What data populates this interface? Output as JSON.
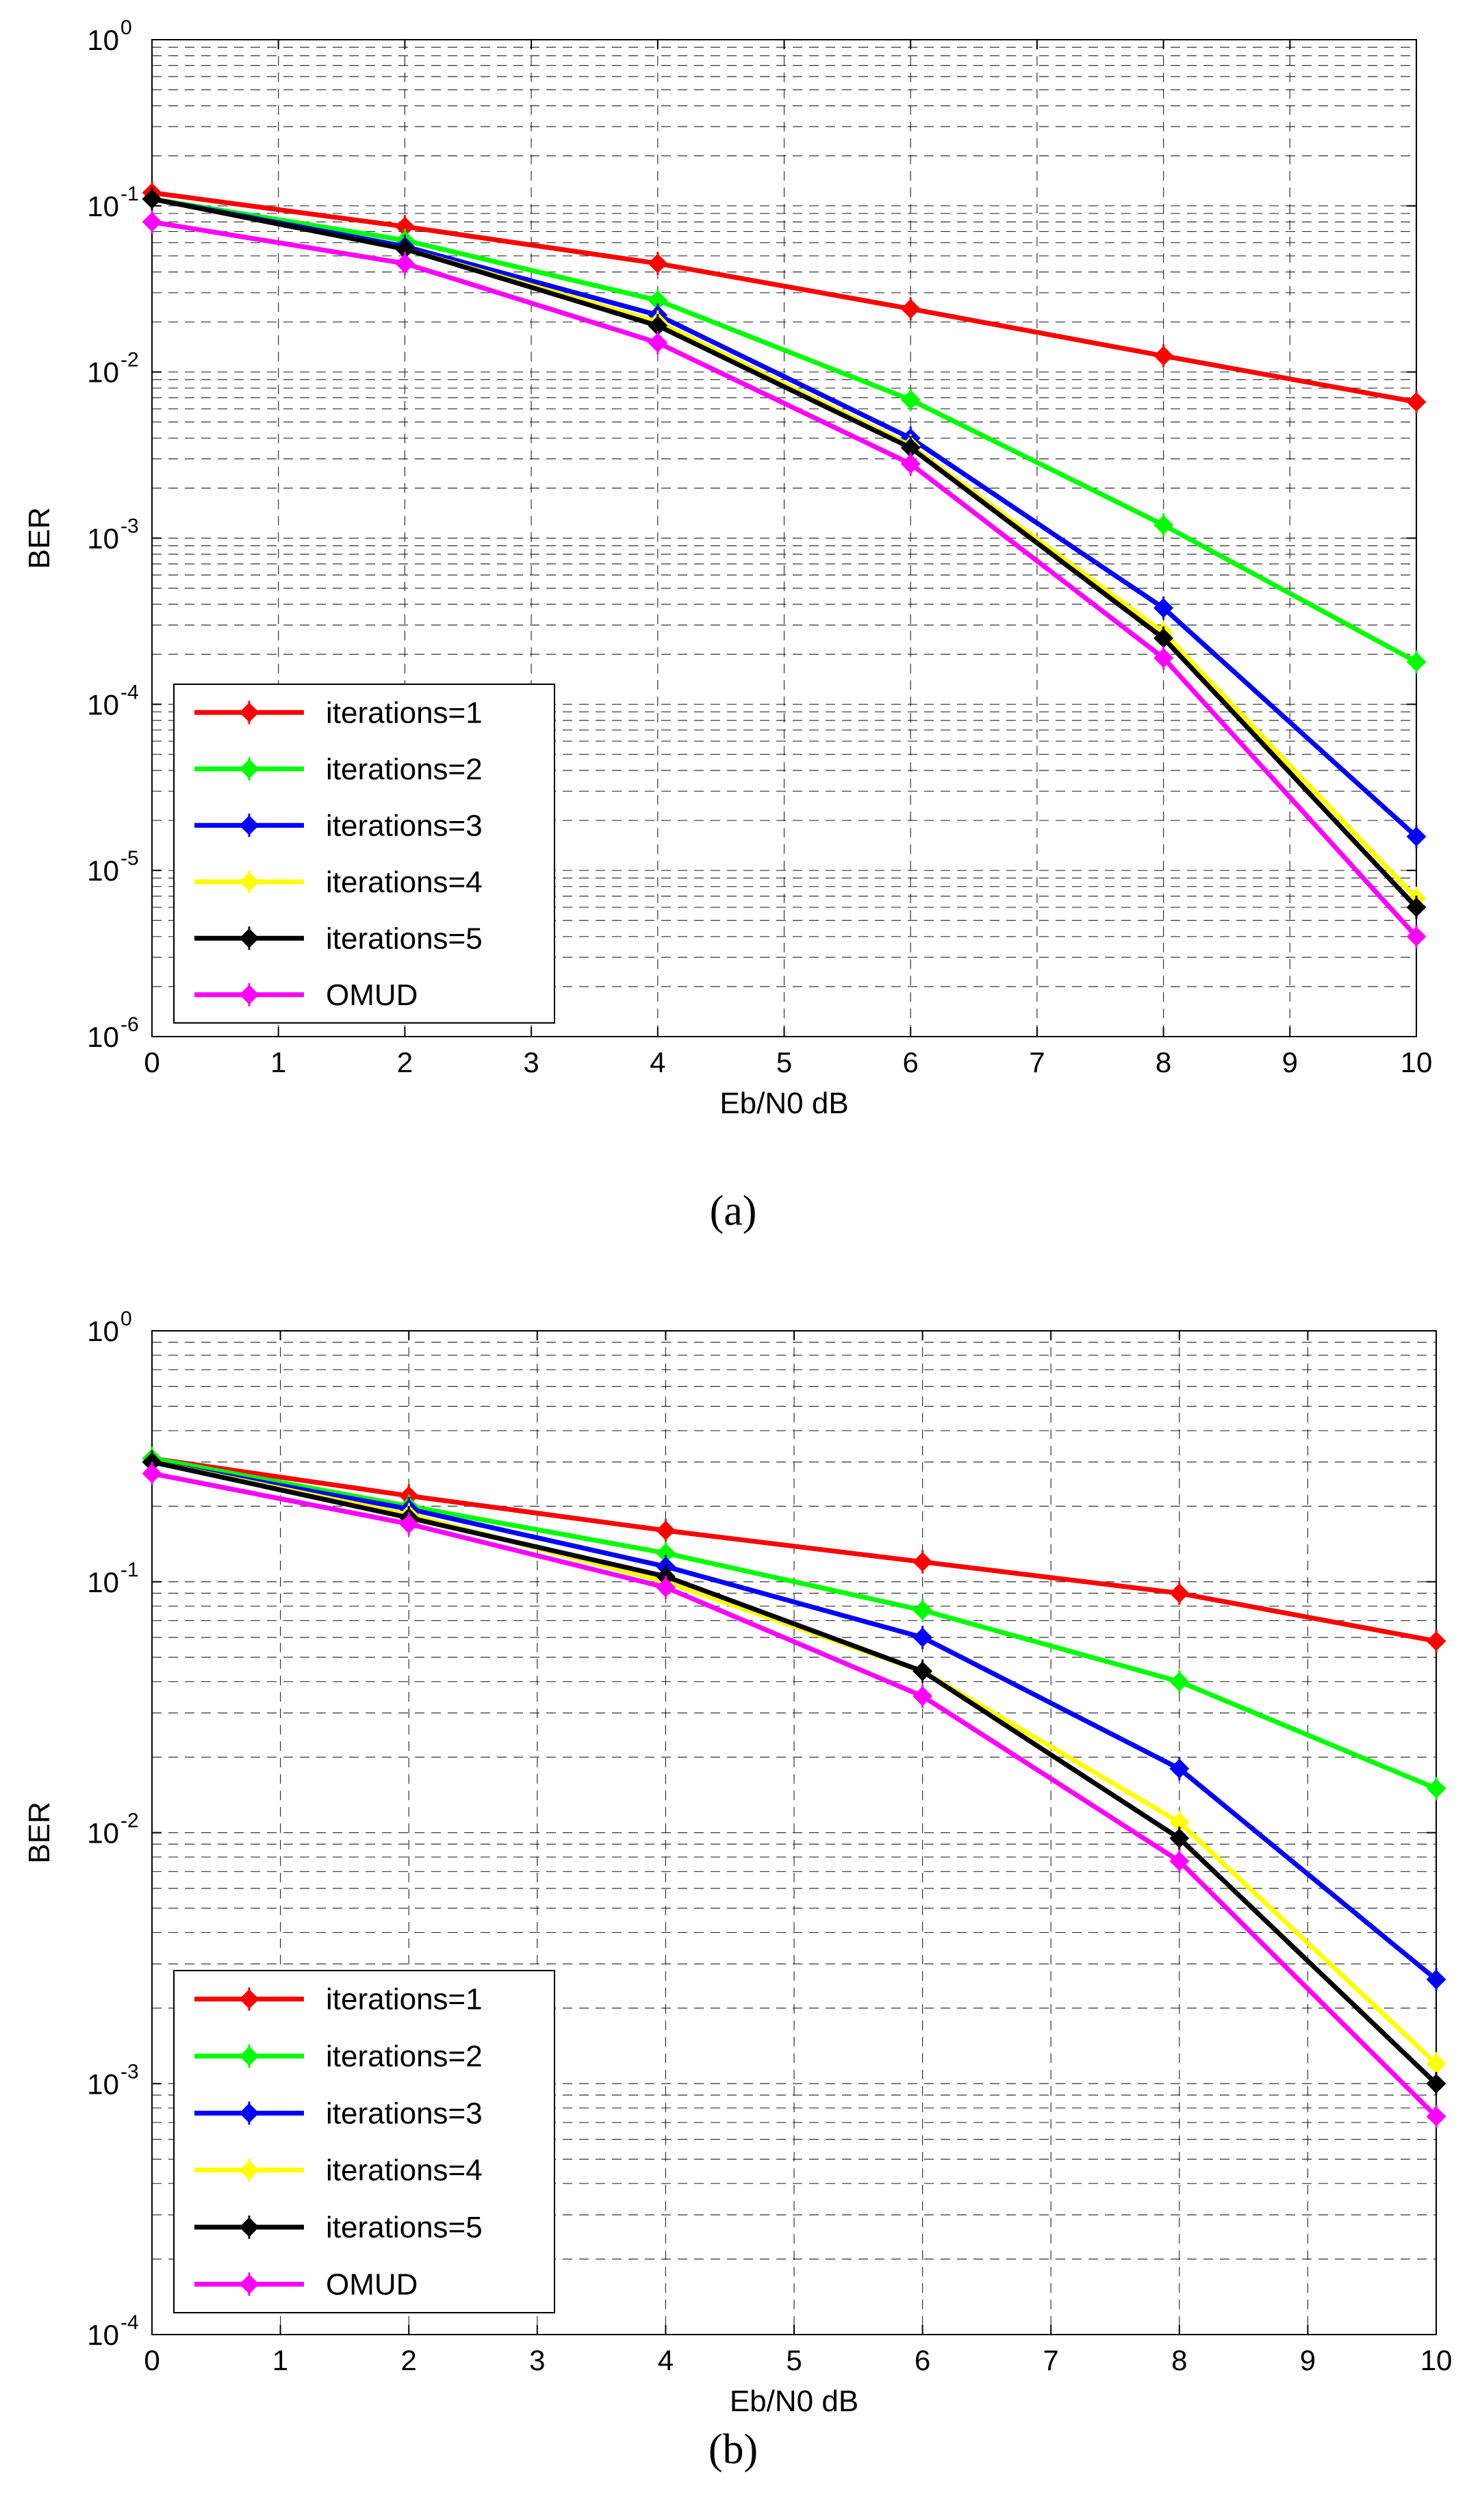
{
  "chart_data": [
    {
      "type": "line",
      "caption": "(a)",
      "xlabel": "Eb/N0 dB",
      "ylabel": "BER",
      "xlim": [
        0,
        10
      ],
      "ylim": [
        1e-06,
        1
      ],
      "yscale": "log",
      "grid": true,
      "legend_position": "bottom-left",
      "x_ticks": [
        "0",
        "1",
        "2",
        "3",
        "4",
        "5",
        "6",
        "7",
        "8",
        "9",
        "10"
      ],
      "y_ticks": [
        {
          "base": "10",
          "exp": "0"
        },
        {
          "base": "10",
          "exp": "-1"
        },
        {
          "base": "10",
          "exp": "-2"
        },
        {
          "base": "10",
          "exp": "-3"
        },
        {
          "base": "10",
          "exp": "-4"
        },
        {
          "base": "10",
          "exp": "-5"
        },
        {
          "base": "10",
          "exp": "-6"
        }
      ],
      "x": [
        0,
        2,
        4,
        6,
        8,
        10
      ],
      "series": [
        {
          "name": "iterations=1",
          "color": "#ff0000",
          "values": [
            0.12,
            0.075,
            0.045,
            0.024,
            0.0125,
            0.0066
          ]
        },
        {
          "name": "iterations=2",
          "color": "#00ff00",
          "values": [
            0.11,
            0.062,
            0.027,
            0.0068,
            0.0012,
            0.00018
          ]
        },
        {
          "name": "iterations=3",
          "color": "#0000ff",
          "values": [
            0.11,
            0.057,
            0.022,
            0.004,
            0.00038,
            1.6e-05
          ]
        },
        {
          "name": "iterations=4",
          "color": "#ffff00",
          "values": [
            0.11,
            0.055,
            0.02,
            0.0036,
            0.00027,
            6.8e-06
          ]
        },
        {
          "name": "iterations=5",
          "color": "#000000",
          "values": [
            0.11,
            0.055,
            0.019,
            0.0035,
            0.00025,
            6e-06
          ]
        },
        {
          "name": "OMUD",
          "color": "#ff00ff",
          "values": [
            0.08,
            0.045,
            0.015,
            0.0028,
            0.00019,
            4e-06
          ]
        }
      ]
    },
    {
      "type": "line",
      "caption": "(b)",
      "xlabel": "Eb/N0 dB",
      "ylabel": "BER",
      "xlim": [
        0,
        10
      ],
      "ylim": [
        0.0001,
        1
      ],
      "yscale": "log",
      "grid": true,
      "legend_position": "bottom-left",
      "x_ticks": [
        "0",
        "1",
        "2",
        "3",
        "4",
        "5",
        "6",
        "7",
        "8",
        "9",
        "10"
      ],
      "y_ticks": [
        {
          "base": "10",
          "exp": "0"
        },
        {
          "base": "10",
          "exp": "-1"
        },
        {
          "base": "10",
          "exp": "-2"
        },
        {
          "base": "10",
          "exp": "-3"
        },
        {
          "base": "10",
          "exp": "-4"
        }
      ],
      "x": [
        0,
        2,
        4,
        6,
        8,
        10
      ],
      "series": [
        {
          "name": "iterations=1",
          "color": "#ff0000",
          "values": [
            0.31,
            0.22,
            0.16,
            0.12,
            0.09,
            0.058
          ]
        },
        {
          "name": "iterations=2",
          "color": "#00ff00",
          "values": [
            0.31,
            0.2,
            0.13,
            0.077,
            0.04,
            0.015
          ]
        },
        {
          "name": "iterations=3",
          "color": "#0000ff",
          "values": [
            0.3,
            0.195,
            0.115,
            0.06,
            0.018,
            0.0026
          ]
        },
        {
          "name": "iterations=4",
          "color": "#ffff00",
          "values": [
            0.3,
            0.185,
            0.1,
            0.044,
            0.011,
            0.0012
          ]
        },
        {
          "name": "iterations=5",
          "color": "#000000",
          "values": [
            0.3,
            0.18,
            0.105,
            0.044,
            0.0095,
            0.001
          ]
        },
        {
          "name": "OMUD",
          "color": "#ff00ff",
          "values": [
            0.27,
            0.17,
            0.095,
            0.035,
            0.0077,
            0.00074
          ]
        }
      ]
    }
  ]
}
